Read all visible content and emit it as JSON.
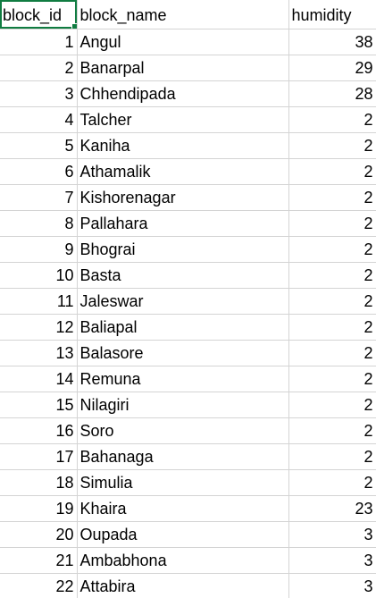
{
  "sheet": {
    "headers": [
      "block_id",
      "block_name",
      "humidity"
    ],
    "rows": [
      [
        "1",
        "Angul",
        "38"
      ],
      [
        "2",
        "Banarpal",
        "29"
      ],
      [
        "3",
        "Chhendipada",
        "28"
      ],
      [
        "4",
        "Talcher",
        "2"
      ],
      [
        "5",
        "Kaniha",
        "2"
      ],
      [
        "6",
        "Athamalik",
        "2"
      ],
      [
        "7",
        "Kishorenagar",
        "2"
      ],
      [
        "8",
        "Pallahara",
        "2"
      ],
      [
        "9",
        "Bhograi",
        "2"
      ],
      [
        "10",
        "Basta",
        "2"
      ],
      [
        "11",
        "Jaleswar",
        "2"
      ],
      [
        "12",
        "Baliapal",
        "2"
      ],
      [
        "13",
        "Balasore",
        "2"
      ],
      [
        "14",
        "Remuna",
        "2"
      ],
      [
        "15",
        "Nilagiri",
        "2"
      ],
      [
        "16",
        "Soro",
        "2"
      ],
      [
        "17",
        "Bahanaga",
        "2"
      ],
      [
        "18",
        "Simulia",
        "2"
      ],
      [
        "19",
        "Khaira",
        "23"
      ],
      [
        "20",
        "Oupada",
        "3"
      ],
      [
        "21",
        "Ambabhona",
        "3"
      ],
      [
        "22",
        "Attabira",
        "3"
      ]
    ]
  },
  "colors": {
    "selection": "#107c41",
    "gridline": "#d4d4d4"
  }
}
